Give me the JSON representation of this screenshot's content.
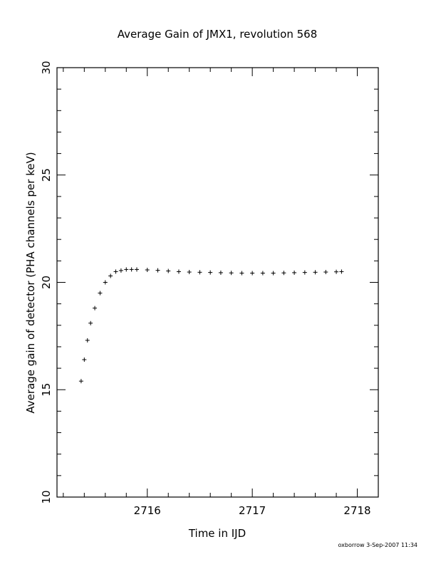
{
  "chart_data": {
    "type": "scatter",
    "title": "Average Gain of JMX1, revolution 568",
    "xlabel": "Time in IJD",
    "ylabel": "Average gain of detector (PHA channels per keV)",
    "xlim": [
      2715.14,
      2718.2
    ],
    "ylim": [
      10,
      30
    ],
    "x_ticks": [
      "2716",
      "2717",
      "2718"
    ],
    "y_ticks": [
      "10",
      "15",
      "20",
      "25",
      "30"
    ],
    "marker": "plus",
    "grid": false,
    "series": [
      {
        "x": [
          2715.37,
          2715.4,
          2715.43,
          2715.46,
          2715.5,
          2715.55,
          2715.6,
          2715.65,
          2715.7,
          2715.75,
          2715.8,
          2715.85,
          2715.9,
          2716.0,
          2716.1,
          2716.2,
          2716.3,
          2716.4,
          2716.5,
          2716.6,
          2716.7,
          2716.8,
          2716.9,
          2717.0,
          2717.1,
          2717.2,
          2717.3,
          2717.4,
          2717.5,
          2717.6,
          2717.7,
          2717.8,
          2717.85
        ],
        "y": [
          15.4,
          16.4,
          17.3,
          18.1,
          18.8,
          19.5,
          20.0,
          20.3,
          20.5,
          20.55,
          20.6,
          20.6,
          20.6,
          20.58,
          20.56,
          20.53,
          20.5,
          20.48,
          20.47,
          20.46,
          20.45,
          20.44,
          20.43,
          20.43,
          20.43,
          20.43,
          20.44,
          20.45,
          20.46,
          20.47,
          20.48,
          20.49,
          20.5
        ]
      }
    ]
  },
  "footer": {
    "stamp": "oxborrow   3-Sep-2007 11:34"
  }
}
